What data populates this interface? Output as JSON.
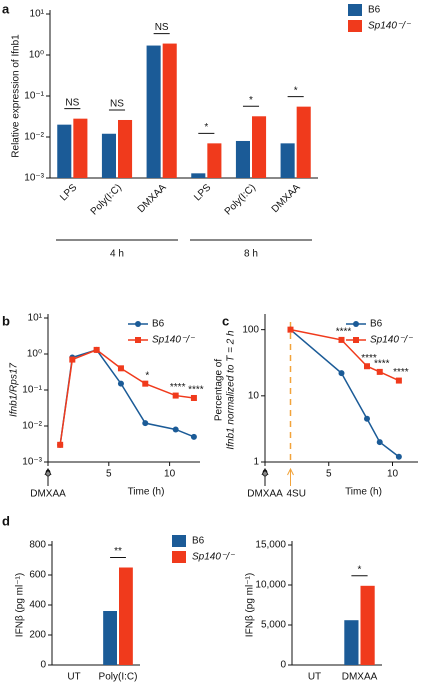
{
  "chart_data": [
    {
      "panel": "a",
      "type": "bar",
      "log_scale": true,
      "ylabel": "Relative expression of Ifnb1",
      "categories": [
        "LPS",
        "Poly(I:C)",
        "DMXAA",
        "LPS",
        "Poly(I:C)",
        "DMXAA"
      ],
      "x_groups": [
        "4 h",
        "8 h"
      ],
      "series": [
        {
          "name": "B6",
          "color": "#1b5b97",
          "values": [
            0.02,
            0.012,
            1.7,
            0.0013,
            0.008,
            0.007
          ]
        },
        {
          "name": "Sp140⁻/⁻",
          "color": "#f03a1c",
          "values": [
            0.028,
            0.026,
            1.9,
            0.007,
            0.032,
            0.055
          ]
        }
      ],
      "annotations": [
        "NS",
        "NS",
        "NS",
        "*",
        "*",
        "*"
      ],
      "ylim": [
        0.001,
        10
      ],
      "yticks": [
        {
          "value": 0.001,
          "label": "10⁻³"
        },
        {
          "value": 0.01,
          "label": "10⁻²"
        },
        {
          "value": 0.1,
          "label": "10⁻¹"
        },
        {
          "value": 1,
          "label": "10⁰"
        },
        {
          "value": 10,
          "label": "10¹"
        }
      ],
      "legend": "outside right"
    },
    {
      "panel": "b",
      "type": "line",
      "log_scale": true,
      "ylabel": "Ifnb1/Rps17",
      "xlabel": "Time (h)",
      "x": [
        1,
        2,
        4,
        6,
        8,
        10.5,
        12
      ],
      "series": [
        {
          "name": "B6",
          "color": "#1b5b97",
          "marker": "circle",
          "values": [
            0.003,
            0.8,
            1.3,
            0.15,
            0.012,
            0.008,
            0.005
          ]
        },
        {
          "name": "Sp140⁻/⁻",
          "color": "#f03a1c",
          "marker": "square",
          "values": [
            0.003,
            0.7,
            1.3,
            0.4,
            0.15,
            0.07,
            0.06
          ]
        }
      ],
      "annotations": [
        null,
        null,
        null,
        null,
        "*",
        "****",
        "****"
      ],
      "xlim": [
        0,
        12.5
      ],
      "xticks": [
        0,
        5,
        10
      ],
      "ylim": [
        0.001,
        10
      ],
      "yticks": [
        {
          "value": 0.001,
          "label": "10⁻³"
        },
        {
          "value": 0.01,
          "label": "10⁻²"
        },
        {
          "value": 0.1,
          "label": "10⁻¹"
        },
        {
          "value": 1,
          "label": "10⁰"
        },
        {
          "value": 10,
          "label": "10¹"
        }
      ],
      "markers": [
        {
          "x": 0,
          "label": "DMXAA"
        }
      ],
      "legend": "upper right"
    },
    {
      "panel": "c",
      "type": "line",
      "log_scale": true,
      "ylabel": [
        "Percentage of",
        "Ifnb1 normalized to T = 2 h"
      ],
      "xlabel": "Time (h)",
      "x": [
        2,
        6,
        8,
        9,
        10.5
      ],
      "series": [
        {
          "name": "B6",
          "color": "#1b5b97",
          "marker": "circle",
          "values": [
            100,
            22,
            4.5,
            2,
            1.2
          ]
        },
        {
          "name": "Sp140⁻/⁻",
          "color": "#f03a1c",
          "marker": "square",
          "values": [
            100,
            70,
            28,
            23,
            17
          ]
        }
      ],
      "annotations": [
        null,
        "****",
        "****",
        "****",
        "****"
      ],
      "xlim": [
        0,
        12
      ],
      "xticks": [
        0,
        5,
        10
      ],
      "ylim": [
        1,
        150
      ],
      "yticks": [
        1,
        10,
        100
      ],
      "markers": [
        {
          "x": 0,
          "label": "DMXAA"
        },
        {
          "x": 2,
          "label": "4SU",
          "line_color": "#f2a33a"
        }
      ],
      "legend": "upper right"
    },
    {
      "panel": "d",
      "type": "bar",
      "log_scale": false,
      "ylabel": "IFNβ (pg ml⁻¹)",
      "categories": [
        "UT",
        "Poly(I:C)"
      ],
      "series": [
        {
          "name": "B6",
          "color": "#1b5b97",
          "values": [
            0,
            360
          ]
        },
        {
          "name": "Sp140⁻/⁻",
          "color": "#f03a1c",
          "values": [
            0,
            650
          ]
        }
      ],
      "annotations": [
        null,
        "**"
      ],
      "ylim": [
        0,
        800
      ],
      "yticks": [
        0,
        200,
        400,
        600,
        800
      ],
      "legend": "outside right"
    },
    {
      "type": "bar",
      "log_scale": false,
      "ylabel": "IFNβ (pg ml⁻¹)",
      "categories": [
        "UT",
        "DMXAA"
      ],
      "series": [
        {
          "name": "B6",
          "color": "#1b5b97",
          "values": [
            0,
            5600
          ]
        },
        {
          "name": "Sp140⁻/⁻",
          "color": "#f03a1c",
          "values": [
            0,
            9900
          ]
        }
      ],
      "annotations": [
        null,
        "*"
      ],
      "ylim": [
        0,
        15000
      ],
      "yticks": [
        0,
        {
          "value": 5000,
          "label": "5,000"
        },
        {
          "value": 10000,
          "label": "10,000"
        },
        {
          "value": 15000,
          "label": "15,000"
        }
      ]
    }
  ]
}
